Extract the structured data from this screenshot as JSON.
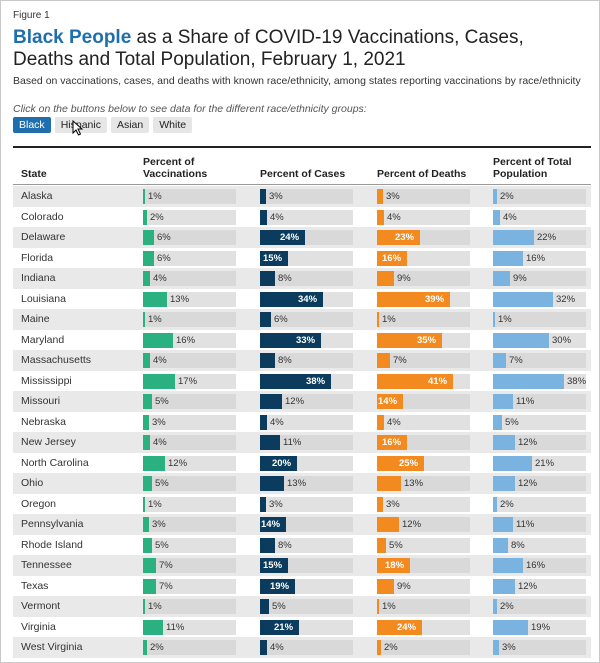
{
  "figure_label": "Figure 1",
  "title_highlight": "Black People",
  "title_rest": " as a Share of COVID-19 Vaccinations, Cases, Deaths and Total Population, February 1, 2021",
  "subtitle": "Based on vaccinations, cases, and deaths with known race/ethnicity, among states reporting vaccinations by race/ethnicity",
  "instruction": "Click on the buttons below to see data for the different race/ethnicity groups:",
  "buttons": [
    "Black",
    "Hispanic",
    "Asian",
    "White"
  ],
  "active_button": "Black",
  "colors": {
    "vaccinations": "#2bb07f",
    "cases": "#0b3c5d",
    "deaths": "#f28a1f",
    "population": "#7ab3e0",
    "accent": "#1f6fae"
  },
  "chart_data": {
    "type": "table",
    "columns": [
      "State",
      "Percent of Vaccinations",
      "Percent of Cases",
      "Percent of Deaths",
      "Percent of Total Population"
    ],
    "header_lines": {
      "state": "State",
      "vaccinations": [
        "Percent of",
        "Vaccinations"
      ],
      "cases": [
        "Percent of Cases"
      ],
      "deaths": [
        "Percent of Deaths"
      ],
      "population": [
        "Percent of Total",
        "Population"
      ]
    },
    "value_scale_max": 100,
    "rows": [
      {
        "state": "Alaska",
        "vaccinations": 1,
        "cases": 3,
        "deaths": 3,
        "population": 2
      },
      {
        "state": "Colorado",
        "vaccinations": 2,
        "cases": 4,
        "deaths": 4,
        "population": 4
      },
      {
        "state": "Delaware",
        "vaccinations": 6,
        "cases": 24,
        "deaths": 23,
        "population": 22
      },
      {
        "state": "Florida",
        "vaccinations": 6,
        "cases": 15,
        "deaths": 16,
        "population": 16
      },
      {
        "state": "Indiana",
        "vaccinations": 4,
        "cases": 8,
        "deaths": 9,
        "population": 9
      },
      {
        "state": "Louisiana",
        "vaccinations": 13,
        "cases": 34,
        "deaths": 39,
        "population": 32
      },
      {
        "state": "Maine",
        "vaccinations": 1,
        "cases": 6,
        "deaths": 1,
        "population": 1
      },
      {
        "state": "Maryland",
        "vaccinations": 16,
        "cases": 33,
        "deaths": 35,
        "population": 30
      },
      {
        "state": "Massachusetts",
        "vaccinations": 4,
        "cases": 8,
        "deaths": 7,
        "population": 7
      },
      {
        "state": "Mississippi",
        "vaccinations": 17,
        "cases": 38,
        "deaths": 41,
        "population": 38
      },
      {
        "state": "Missouri",
        "vaccinations": 5,
        "cases": 12,
        "deaths": 14,
        "population": 11
      },
      {
        "state": "Nebraska",
        "vaccinations": 3,
        "cases": 4,
        "deaths": 4,
        "population": 5
      },
      {
        "state": "New Jersey",
        "vaccinations": 4,
        "cases": 11,
        "deaths": 16,
        "population": 12
      },
      {
        "state": "North Carolina",
        "vaccinations": 12,
        "cases": 20,
        "deaths": 25,
        "population": 21
      },
      {
        "state": "Ohio",
        "vaccinations": 5,
        "cases": 13,
        "deaths": 13,
        "population": 12
      },
      {
        "state": "Oregon",
        "vaccinations": 1,
        "cases": 3,
        "deaths": 3,
        "population": 2
      },
      {
        "state": "Pennsylvania",
        "vaccinations": 3,
        "cases": 14,
        "deaths": 12,
        "population": 11
      },
      {
        "state": "Rhode Island",
        "vaccinations": 5,
        "cases": 8,
        "deaths": 5,
        "population": 8
      },
      {
        "state": "Tennessee",
        "vaccinations": 7,
        "cases": 15,
        "deaths": 18,
        "population": 16
      },
      {
        "state": "Texas",
        "vaccinations": 7,
        "cases": 19,
        "deaths": 9,
        "population": 12
      },
      {
        "state": "Vermont",
        "vaccinations": 1,
        "cases": 5,
        "deaths": 1,
        "population": 2
      },
      {
        "state": "Virginia",
        "vaccinations": 11,
        "cases": 21,
        "deaths": 24,
        "population": 19
      },
      {
        "state": "West Virginia",
        "vaccinations": 2,
        "cases": 4,
        "deaths": 2,
        "population": 3
      }
    ]
  }
}
